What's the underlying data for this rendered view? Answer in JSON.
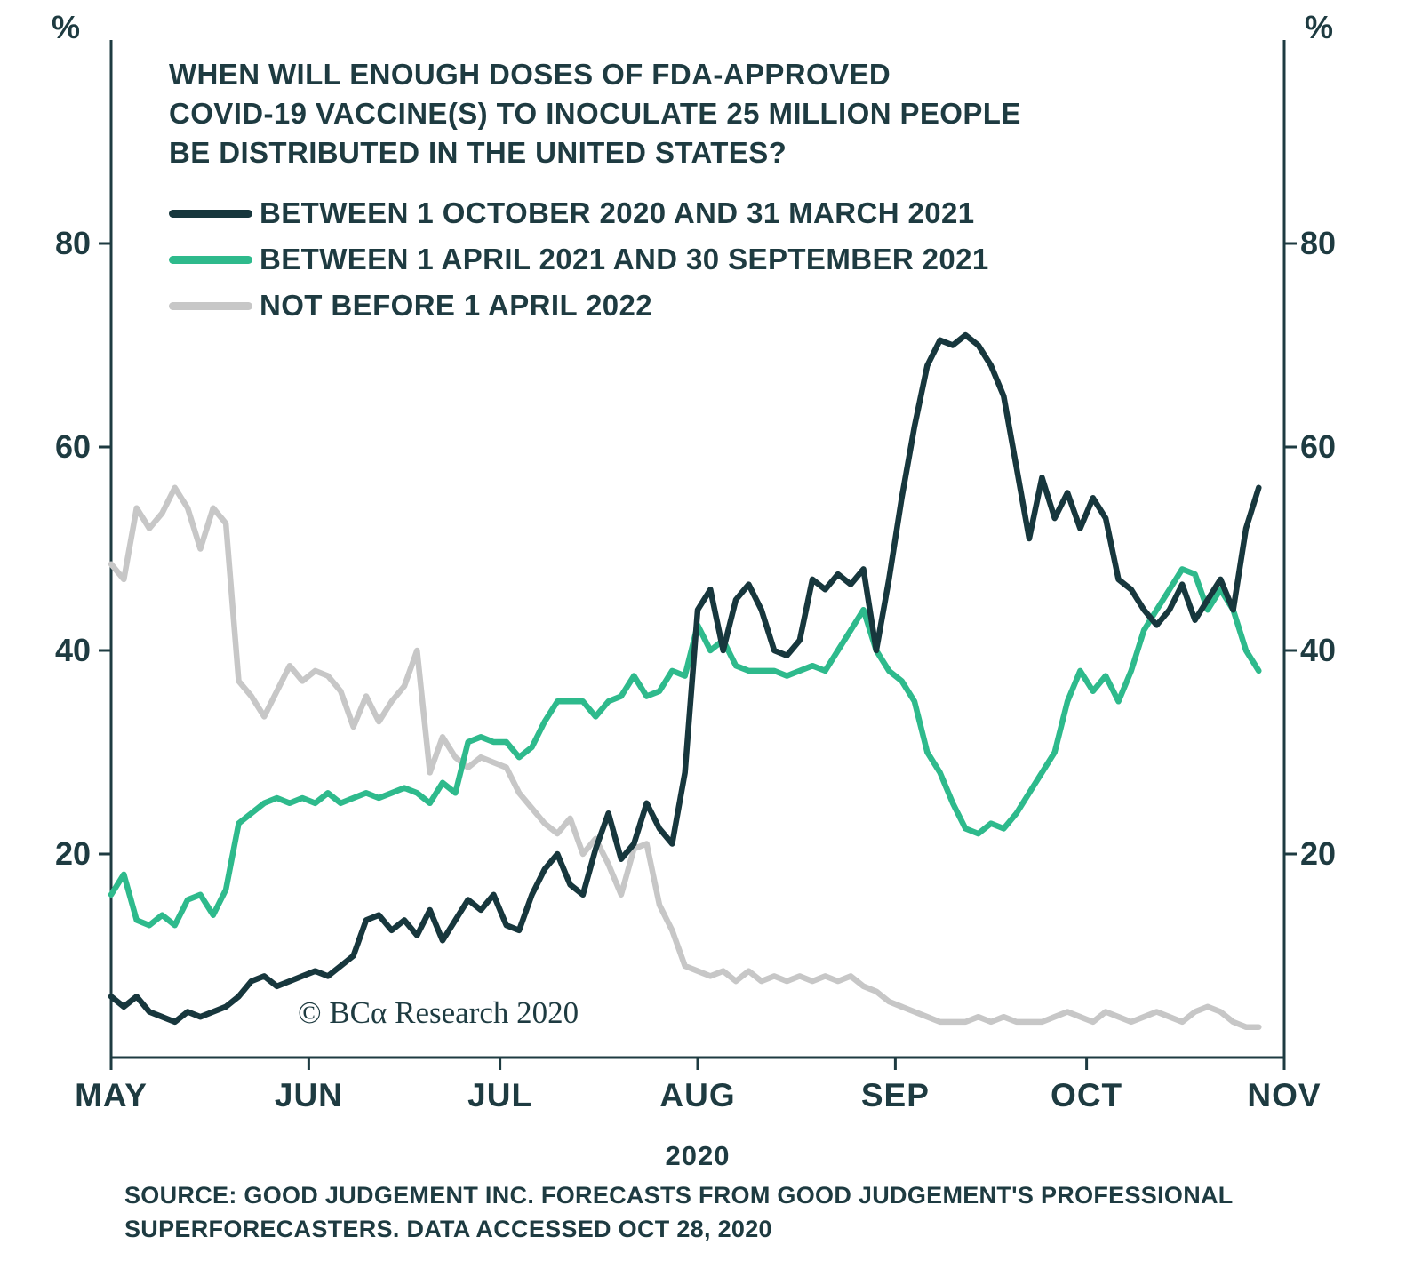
{
  "chart_data": {
    "type": "line",
    "title": "WHEN WILL ENOUGH DOSES OF FDA-APPROVED COVID-19 VACCINE(S) TO INOCULATE 25 MILLION PEOPLE BE DISTRIBUTED IN THE UNITED STATES?",
    "title_lines": [
      "WHEN WILL ENOUGH DOSES OF FDA-APPROVED",
      "COVID-19 VACCINE(S) TO INOCULATE 25 MILLION PEOPLE",
      "BE DISTRIBUTED IN THE UNITED STATES?"
    ],
    "unit": "%",
    "ylim": [
      0,
      100
    ],
    "yticks": [
      20,
      40,
      60,
      80
    ],
    "grid": false,
    "legend_position": "top-left",
    "axis_color": "#1e3b41",
    "x_axis": {
      "x_range": [
        0,
        184
      ],
      "note": "x values are days after 1 May 2020",
      "year_label": "2020",
      "months": [
        {
          "label": "MAY",
          "day": 0
        },
        {
          "label": "JUN",
          "day": 31
        },
        {
          "label": "JUL",
          "day": 61
        },
        {
          "label": "AUG",
          "day": 92
        },
        {
          "label": "SEP",
          "day": 123
        },
        {
          "label": "OCT",
          "day": 153
        },
        {
          "label": "NOV",
          "day": 184
        }
      ]
    },
    "x_days_from_may1": [
      0,
      2,
      4,
      6,
      8,
      10,
      12,
      14,
      16,
      18,
      20,
      22,
      24,
      26,
      28,
      30,
      32,
      34,
      36,
      38,
      40,
      42,
      44,
      46,
      48,
      50,
      52,
      54,
      56,
      58,
      60,
      62,
      64,
      66,
      68,
      70,
      72,
      74,
      76,
      78,
      80,
      82,
      84,
      86,
      88,
      90,
      92,
      94,
      96,
      98,
      100,
      102,
      104,
      106,
      108,
      110,
      112,
      114,
      116,
      118,
      120,
      122,
      124,
      126,
      128,
      130,
      132,
      134,
      136,
      138,
      140,
      142,
      144,
      146,
      148,
      150,
      152,
      154,
      156,
      158,
      160,
      162,
      164,
      166,
      168,
      170,
      172,
      174,
      176,
      178,
      180
    ],
    "legend": [
      {
        "label": "BETWEEN 1 OCTOBER 2020 AND 31 MARCH 2021",
        "color": "#17373d"
      },
      {
        "label": "BETWEEN 1 APRIL 2021 AND 30 SEPTEMBER 2021",
        "color": "#2eba8c"
      },
      {
        "label": "NOT BEFORE 1 APRIL 2022",
        "color": "#c7c7c7"
      }
    ],
    "series": [
      {
        "name": "BETWEEN 1 OCTOBER 2020 AND 31 MARCH 2021",
        "color": "#17373d",
        "values": [
          6,
          5,
          6,
          4.5,
          4,
          3.5,
          4.5,
          4,
          4.5,
          5,
          6,
          7.5,
          8,
          7,
          7.5,
          8,
          8.5,
          8,
          9,
          10,
          13.5,
          14,
          12.5,
          13.5,
          12,
          14.5,
          11.5,
          13.5,
          15.5,
          14.5,
          16,
          13,
          12.5,
          16,
          18.5,
          20,
          17,
          16,
          20.5,
          24,
          19.5,
          21,
          25,
          22.5,
          21,
          28,
          44,
          46,
          40,
          45,
          46.5,
          44,
          40,
          39.5,
          41,
          47,
          46,
          47.5,
          46.5,
          48,
          40,
          47,
          55,
          62,
          68,
          70.5,
          70,
          71,
          70,
          68,
          65,
          58,
          51,
          57,
          53,
          55.5,
          52,
          55,
          53,
          47,
          46,
          44,
          42.5,
          44,
          46.5,
          43,
          45,
          47,
          44,
          52,
          56
        ]
      },
      {
        "name": "BETWEEN 1 APRIL 2021 AND 30 SEPTEMBER 2021",
        "color": "#2eba8c",
        "values": [
          16,
          18,
          13.5,
          13,
          14,
          13,
          15.5,
          16,
          14,
          16.5,
          23,
          24,
          25,
          25.5,
          25,
          25.5,
          25,
          26,
          25,
          25.5,
          26,
          25.5,
          26,
          26.5,
          26,
          25,
          27,
          26,
          31,
          31.5,
          31,
          31,
          29.5,
          30.5,
          33,
          35,
          35,
          35,
          33.5,
          35,
          35.5,
          37.5,
          35.5,
          36,
          38,
          37.5,
          42.5,
          40,
          41,
          38.5,
          38,
          38,
          38,
          37.5,
          38,
          38.5,
          38,
          40,
          42,
          44,
          40,
          38,
          37,
          35,
          30,
          28,
          25,
          22.5,
          22,
          23,
          22.5,
          24,
          26,
          28,
          30,
          35,
          38,
          36,
          37.5,
          35,
          38,
          42,
          44,
          46,
          48,
          47.5,
          44,
          46,
          44,
          40,
          38
        ]
      },
      {
        "name": "NOT BEFORE 1 APRIL 2022",
        "color": "#c7c7c7",
        "values": [
          48.5,
          47,
          54,
          52,
          53.5,
          56,
          54,
          50,
          54,
          52.5,
          37,
          35.5,
          33.5,
          36,
          38.5,
          37,
          38,
          37.5,
          36,
          32.5,
          35.5,
          33,
          35,
          36.5,
          40,
          28,
          31.5,
          29.5,
          28.5,
          29.5,
          29,
          28.5,
          26,
          24.5,
          23,
          22,
          23.5,
          20,
          21.5,
          19,
          16,
          20.5,
          21,
          15,
          12.5,
          9,
          8.5,
          8,
          8.5,
          7.5,
          8.5,
          7.5,
          8,
          7.5,
          8,
          7.5,
          8,
          7.5,
          8,
          7,
          6.5,
          5.5,
          5,
          4.5,
          4,
          3.5,
          3.5,
          3.5,
          4,
          3.5,
          4,
          3.5,
          3.5,
          3.5,
          4,
          4.5,
          4,
          3.5,
          4.5,
          4,
          3.5,
          4,
          4.5,
          4,
          3.5,
          4.5,
          5,
          4.5,
          3.5,
          3,
          3
        ]
      }
    ]
  },
  "watermark": "© BCα Research 2020",
  "source_lines": [
    "SOURCE: GOOD JUDGEMENT INC. FORECASTS FROM GOOD JUDGEMENT'S PROFESSIONAL",
    "SUPERFORECASTERS. DATA ACCESSED OCT 28, 2020"
  ]
}
